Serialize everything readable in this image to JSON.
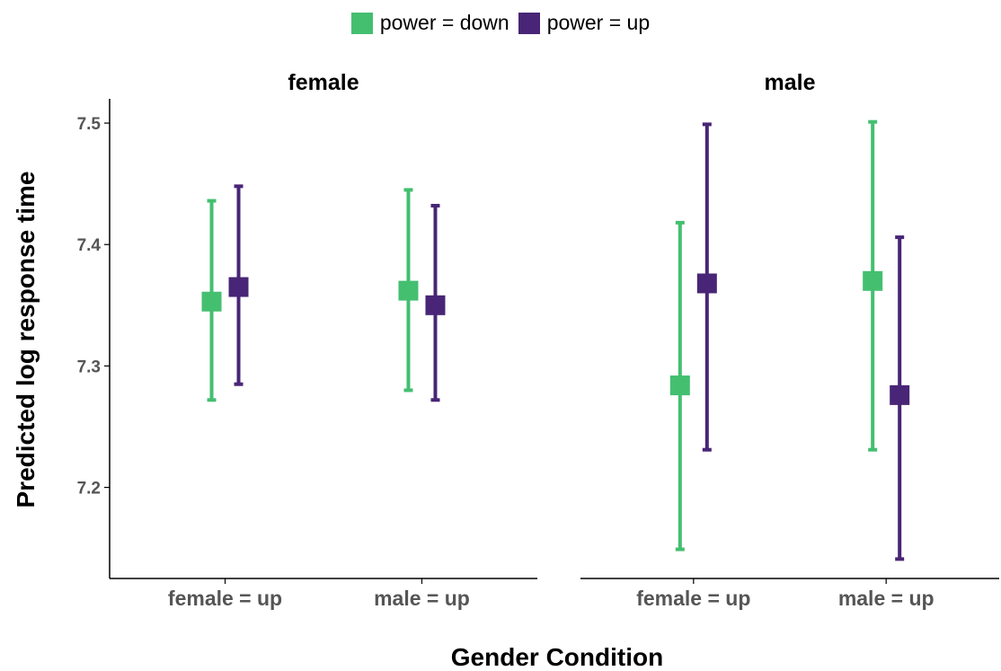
{
  "chart_data": {
    "type": "scatter",
    "subtype": "point-with-errorbars, faceted",
    "xlabel": "Gender Condition",
    "ylabel": "Predicted log response time",
    "ylim": [
      7.125,
      7.52
    ],
    "yticks": [
      7.2,
      7.3,
      7.4,
      7.5
    ],
    "ytick_labels": [
      "7.2",
      "7.3",
      "7.4",
      "7.5"
    ],
    "categories": [
      "female = up",
      "male = up"
    ],
    "legend": {
      "position": "top",
      "entries": [
        {
          "name": "power = down",
          "color": "#44BF70"
        },
        {
          "name": "power = up",
          "color": "#482576"
        }
      ]
    },
    "grid": false,
    "facets": [
      {
        "title": "female",
        "series": [
          {
            "name": "power = down",
            "color": "#44BF70",
            "points": [
              {
                "category": "female = up",
                "y": 7.353,
                "ymin": 7.272,
                "ymax": 7.436
              },
              {
                "category": "male = up",
                "y": 7.362,
                "ymin": 7.28,
                "ymax": 7.445
              }
            ]
          },
          {
            "name": "power = up",
            "color": "#482576",
            "points": [
              {
                "category": "female = up",
                "y": 7.365,
                "ymin": 7.285,
                "ymax": 7.448
              },
              {
                "category": "male = up",
                "y": 7.35,
                "ymin": 7.272,
                "ymax": 7.432
              }
            ]
          }
        ]
      },
      {
        "title": "male",
        "series": [
          {
            "name": "power = down",
            "color": "#44BF70",
            "points": [
              {
                "category": "female = up",
                "y": 7.284,
                "ymin": 7.149,
                "ymax": 7.418
              },
              {
                "category": "male = up",
                "y": 7.37,
                "ymin": 7.231,
                "ymax": 7.501
              }
            ]
          },
          {
            "name": "power = up",
            "color": "#482576",
            "points": [
              {
                "category": "female = up",
                "y": 7.368,
                "ymin": 7.231,
                "ymax": 7.499
              },
              {
                "category": "male = up",
                "y": 7.276,
                "ymin": 7.141,
                "ymax": 7.406
              }
            ]
          }
        ]
      }
    ]
  }
}
